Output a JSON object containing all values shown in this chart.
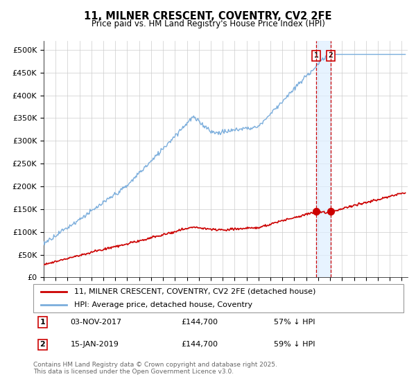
{
  "title": "11, MILNER CRESCENT, COVENTRY, CV2 2FE",
  "subtitle": "Price paid vs. HM Land Registry's House Price Index (HPI)",
  "hpi_label": "HPI: Average price, detached house, Coventry",
  "property_label": "11, MILNER CRESCENT, COVENTRY, CV2 2FE (detached house)",
  "hpi_color": "#7aaddc",
  "property_color": "#cc0000",
  "vline_color": "#cc0000",
  "annotation_box_color": "#cc0000",
  "background_color": "#ffffff",
  "grid_color": "#cccccc",
  "ylim": [
    0,
    520000
  ],
  "yticks": [
    0,
    50000,
    100000,
    150000,
    200000,
    250000,
    300000,
    350000,
    400000,
    450000,
    500000
  ],
  "ytick_labels": [
    "£0",
    "£50K",
    "£100K",
    "£150K",
    "£200K",
    "£250K",
    "£300K",
    "£350K",
    "£400K",
    "£450K",
    "£500K"
  ],
  "sale1_date": 2017.84,
  "sale1_price": 144700,
  "sale1_label": "1",
  "sale1_text": "03-NOV-2017",
  "sale1_price_text": "£144,700",
  "sale1_hpi_text": "57% ↓ HPI",
  "sale2_date": 2019.04,
  "sale2_price": 144700,
  "sale2_label": "2",
  "sale2_text": "15-JAN-2019",
  "sale2_price_text": "£144,700",
  "sale2_hpi_text": "59% ↓ HPI",
  "footer_text": "Contains HM Land Registry data © Crown copyright and database right 2025.\nThis data is licensed under the Open Government Licence v3.0.",
  "xmin": 1995,
  "xmax": 2025.5,
  "shaded_color": "#ddeeff"
}
